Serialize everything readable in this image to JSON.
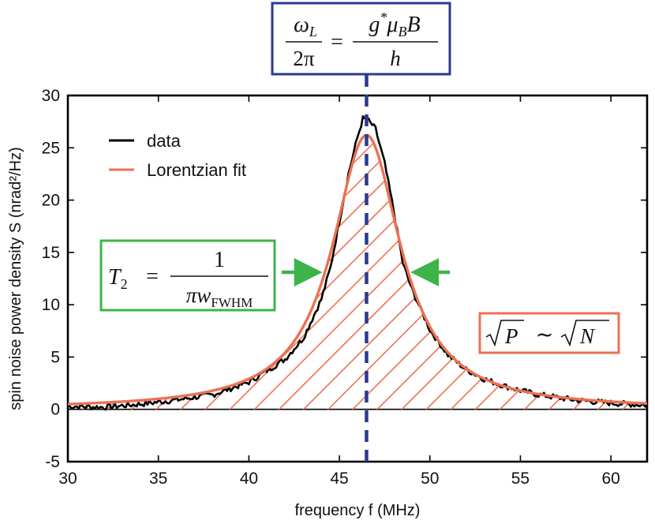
{
  "chart_data": {
    "type": "line",
    "title": "",
    "xlabel": "frequency f (MHz)",
    "ylabel": "spin noise power density S (nrad²/Hz)",
    "xlim": [
      30,
      62
    ],
    "ylim": [
      -5,
      30
    ],
    "xticks": [
      30,
      35,
      40,
      45,
      50,
      55,
      60
    ],
    "yticks": [
      -5,
      0,
      5,
      10,
      15,
      20,
      25,
      30
    ],
    "series": [
      {
        "name": "data",
        "color": "#000000",
        "x": [
          30,
          32,
          34,
          36,
          38,
          40,
          41,
          42,
          43,
          44,
          44.5,
          45,
          45.5,
          46,
          46.3,
          46.6,
          47,
          47.5,
          48,
          48.5,
          49,
          50,
          51,
          52,
          53,
          54,
          55,
          56,
          58,
          60,
          62
        ],
        "y": [
          0.3,
          0.2,
          0.5,
          0.9,
          1.4,
          2.6,
          3.7,
          4.8,
          6.8,
          10.5,
          13.5,
          18.0,
          22.5,
          26.0,
          27.8,
          27.6,
          26.8,
          23.5,
          19.0,
          14.0,
          11.5,
          7.6,
          5.2,
          3.8,
          2.9,
          2.3,
          1.8,
          1.4,
          0.9,
          0.6,
          0.4
        ]
      },
      {
        "name": "Lorentzian fit",
        "color": "#ec7153",
        "type": "lorentzian",
        "center": 46.5,
        "amplitude": 26.2,
        "fwhm": 4.6
      }
    ],
    "legend": {
      "position": "top-left",
      "entries": [
        "data",
        "Lorentzian fit"
      ]
    },
    "center_marker": {
      "x": 46.5,
      "color": "#2a3a8f",
      "style": "dashed"
    },
    "annotations": {
      "larmor": {
        "color": "#2a3a8f",
        "lhs_num": "ω",
        "lhs_num_sub": "L",
        "lhs_den": "2π",
        "eq": "=",
        "rhs_num_g": "g",
        "rhs_num_star": "*",
        "rhs_num_mu": "μ",
        "rhs_num_mu_sub": "B",
        "rhs_num_B": "B",
        "rhs_den": "h"
      },
      "t2": {
        "color": "#3cb449",
        "lhs": "T",
        "lhs_sub": "2",
        "eq": "=",
        "num": "1",
        "den_pi": "π",
        "den_w": "w",
        "den_sub": "FWHM"
      },
      "power": {
        "color": "#ec7153",
        "text_P": "P",
        "tilde": "∼",
        "text_N": "N"
      }
    }
  }
}
